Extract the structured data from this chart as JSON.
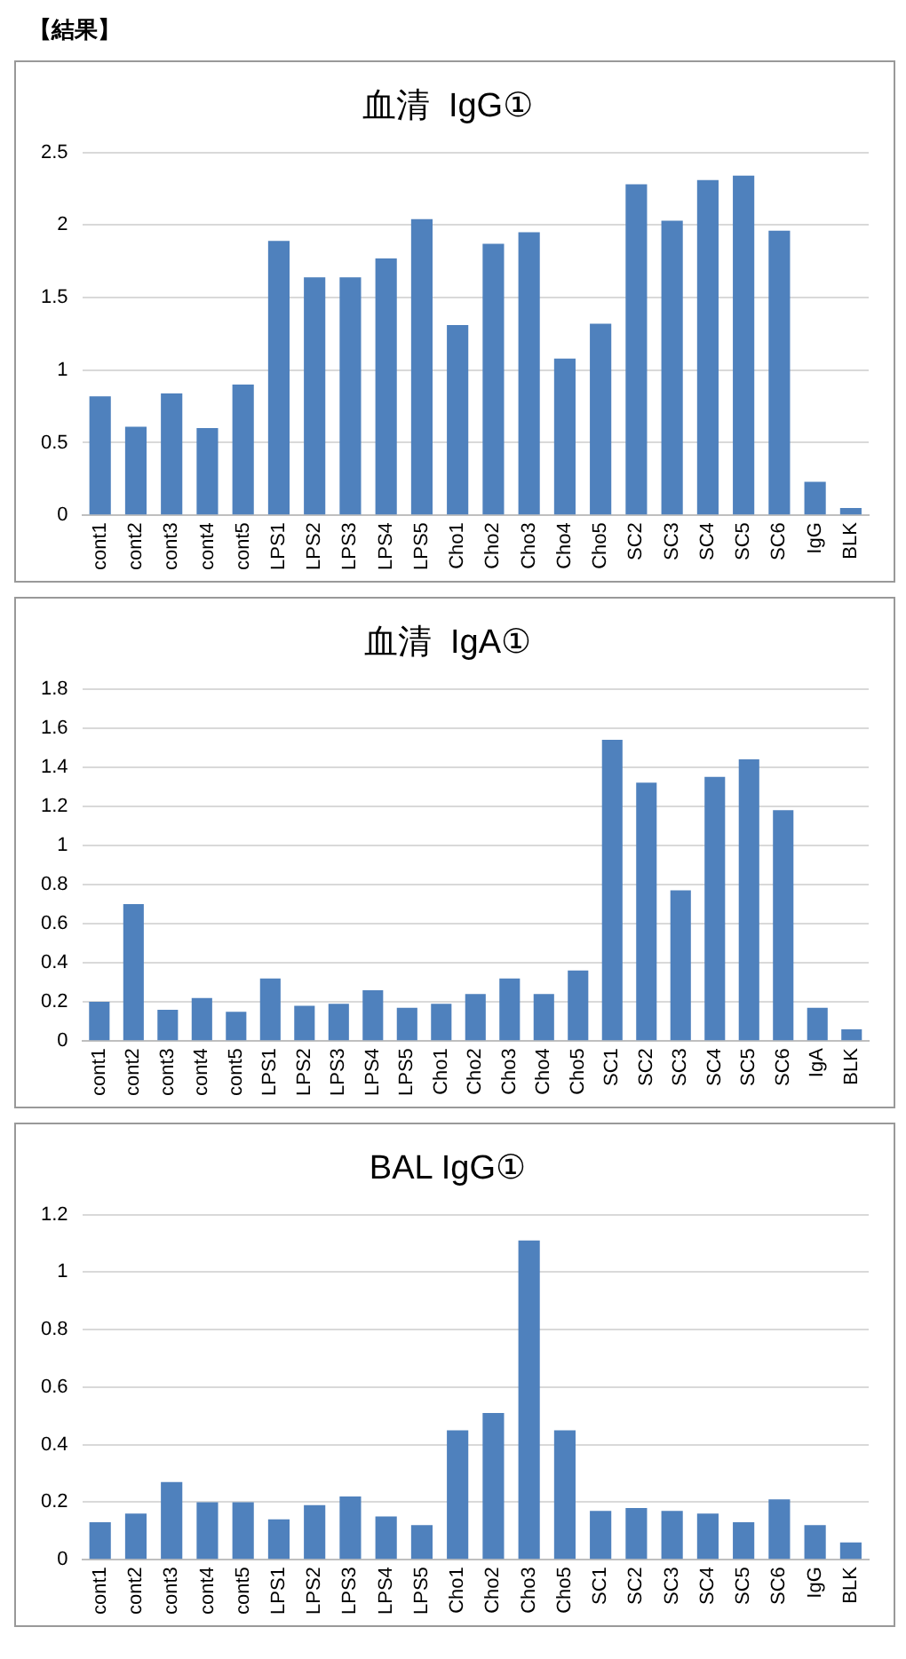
{
  "chart_data": [
    {
      "type": "bar",
      "title": "血清  IgG①",
      "annotations": [
        "【結果】"
      ],
      "categories": [
        "cont1",
        "cont2",
        "cont3",
        "cont4",
        "cont5",
        "LPS1",
        "LPS2",
        "LPS3",
        "LPS4",
        "LPS5",
        "Cho1",
        "Cho2",
        "Cho3",
        "Cho4",
        "Cho5",
        "SC2",
        "SC3",
        "SC4",
        "SC5",
        "SC6",
        "IgG",
        "BLK"
      ],
      "values": [
        0.82,
        0.61,
        0.84,
        0.6,
        0.9,
        1.89,
        1.64,
        1.64,
        1.77,
        2.04,
        1.31,
        1.87,
        1.95,
        1.08,
        1.32,
        2.28,
        2.03,
        2.31,
        2.34,
        1.96,
        0.23,
        0.05
      ],
      "color": "#4f81bd",
      "ylim": [
        0,
        2.5
      ],
      "yticks": [
        0,
        0.5,
        1,
        1.5,
        2,
        2.5
      ],
      "grid": "y",
      "legend": false
    },
    {
      "type": "bar",
      "title": "血清  IgA①",
      "categories": [
        "cont1",
        "cont2",
        "cont3",
        "cont4",
        "cont5",
        "LPS1",
        "LPS2",
        "LPS3",
        "LPS4",
        "LPS5",
        "Cho1",
        "Cho2",
        "Cho3",
        "Cho4",
        "Cho5",
        "SC1",
        "SC2",
        "SC3",
        "SC4",
        "SC5",
        "SC6",
        "IgA",
        "BLK"
      ],
      "values": [
        0.2,
        0.7,
        0.16,
        0.22,
        0.15,
        0.32,
        0.18,
        0.19,
        0.26,
        0.17,
        0.19,
        0.24,
        0.32,
        0.24,
        0.36,
        1.54,
        1.32,
        0.77,
        1.35,
        1.44,
        1.18,
        0.17,
        0.06
      ],
      "color": "#4f81bd",
      "ylim": [
        0,
        1.8
      ],
      "yticks": [
        0,
        0.2,
        0.4,
        0.6,
        0.8,
        1,
        1.2,
        1.4,
        1.6,
        1.8
      ],
      "grid": "y",
      "legend": false
    },
    {
      "type": "bar",
      "title": "BAL IgG①",
      "categories": [
        "cont1",
        "cont2",
        "cont3",
        "cont4",
        "cont5",
        "LPS1",
        "LPS2",
        "LPS3",
        "LPS4",
        "LPS5",
        "Cho1",
        "Cho2",
        "Cho3",
        "Cho5",
        "SC1",
        "SC2",
        "SC3",
        "SC4",
        "SC5",
        "SC6",
        "IgG",
        "BLK"
      ],
      "values": [
        0.13,
        0.16,
        0.27,
        0.2,
        0.2,
        0.14,
        0.19,
        0.22,
        0.15,
        0.12,
        0.45,
        0.51,
        1.11,
        0.45,
        0.17,
        0.18,
        0.17,
        0.16,
        0.13,
        0.21,
        0.12,
        0.06
      ],
      "color": "#4f81bd",
      "ylim": [
        0,
        1.2
      ],
      "yticks": [
        0,
        0.2,
        0.4,
        0.6,
        0.8,
        1,
        1.2
      ],
      "grid": "y",
      "legend": false
    }
  ]
}
